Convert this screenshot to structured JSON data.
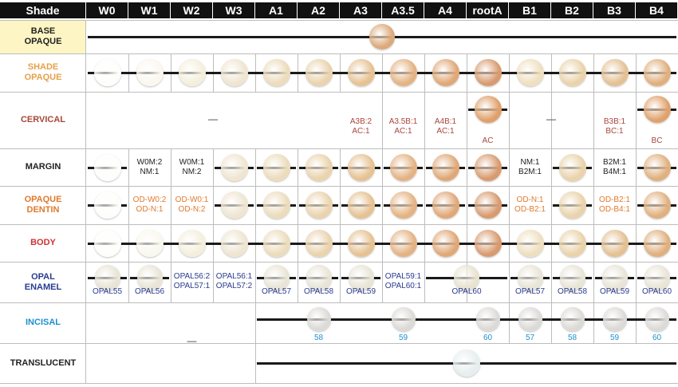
{
  "header": {
    "shade_label": "Shade",
    "columns": [
      "W0",
      "W1",
      "W2",
      "W3",
      "A1",
      "A2",
      "A3",
      "A3.5",
      "A4",
      "rootA",
      "B1",
      "B2",
      "B3",
      "B4"
    ]
  },
  "colors": {
    "header_bg": "#111111",
    "base_opaque_bg": "#fdf6c4",
    "grid": "#bdbdbd",
    "label_dark": "#222222",
    "label_orange": "#e6a04a",
    "label_brown": "#a8463a",
    "label_red": "#cc3333",
    "label_blue": "#2a3b8f",
    "label_cyan": "#1d8fcf"
  },
  "rows": [
    {
      "id": "base-opaque",
      "label": "BASE\nOPAQUE",
      "label_color": "#222222",
      "bg": "#fdf6c4",
      "dash": ""
    },
    {
      "id": "shade-opaque",
      "label": "SHADE\nOPAQUE",
      "label_color": "#e6a04a",
      "dash": ""
    },
    {
      "id": "cervical",
      "label": "CERVICAL",
      "label_color": "#a8463a",
      "dash": "—",
      "dash2": "—"
    },
    {
      "id": "margin",
      "label": "MARGIN",
      "label_color": "#222222",
      "dash": ""
    },
    {
      "id": "opaque-dentin",
      "label": "OPAQUE\nDENTIN",
      "label_color": "#e07a2c",
      "dash": ""
    },
    {
      "id": "body",
      "label": "BODY",
      "label_color": "#cc3333",
      "dash": ""
    },
    {
      "id": "opal-enamel",
      "label": "OPAL\nENAMEL",
      "label_color": "#2a3b8f",
      "dash": ""
    },
    {
      "id": "incisal",
      "label": "INCISAL",
      "label_color": "#1d8fcf",
      "dash": "—"
    },
    {
      "id": "translucent",
      "label": "TRANSLUCENT",
      "label_color": "#222222",
      "dash": ""
    }
  ],
  "texts": {
    "cervical": [
      "A3B:2\nAC:1",
      "A3.5B:1\nAC:1",
      "A4B:1\nAC:1",
      "AC",
      "B3B:1\nBC:1",
      "BC"
    ],
    "margin": [
      "W0M:2\nNM:1",
      "W0M:1\nNM:2",
      "NM:1\nB2M:1",
      "B2M:1\nB4M:1"
    ],
    "opaque_dentin": [
      "OD-W0:2\nOD-N:1",
      "OD-W0:1\nOD-N:2",
      "OD-N:1\nOD-B2:1",
      "OD-B2:1\nOD-B4:1"
    ],
    "opal_enamel": [
      "OPAL55",
      "OPAL56",
      "OPAL56:2\nOPAL57:1",
      "OPAL56:1\nOPAL57:2",
      "OPAL57",
      "OPAL58",
      "OPAL59",
      "OPAL59:1\nOPAL60:1",
      "OPAL60",
      "OPAL57",
      "OPAL58",
      "OPAL59",
      "OPAL60"
    ],
    "incisal": [
      "58",
      "59",
      "60",
      "57",
      "58",
      "59",
      "60"
    ]
  }
}
